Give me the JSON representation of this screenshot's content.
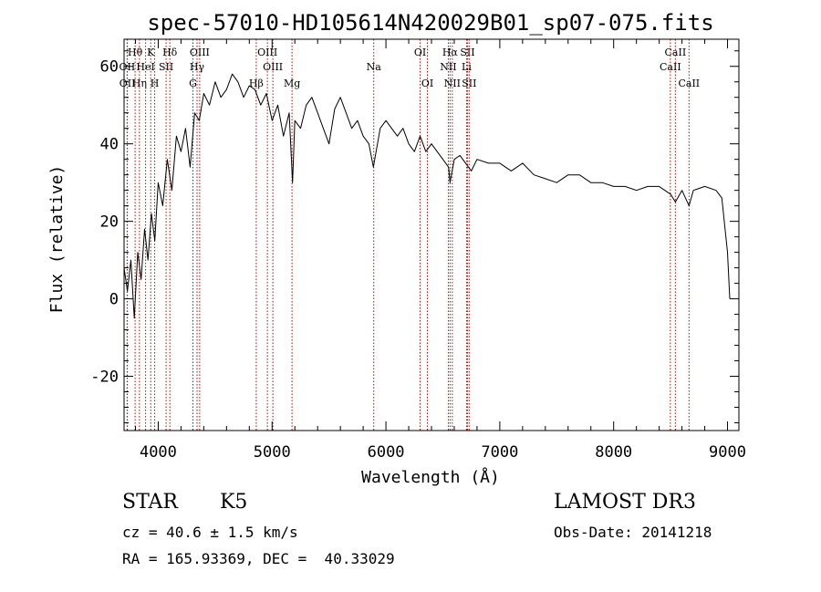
{
  "chart_data": {
    "type": "line",
    "title": "spec-57010-HD105614N420029B01_sp07-075.fits",
    "xlabel": "Wavelength (Å)",
    "ylabel": "Flux (relative)",
    "xlim": [
      3700,
      9100
    ],
    "ylim": [
      -34,
      67
    ],
    "xticks": [
      4000,
      5000,
      6000,
      7000,
      8000,
      9000
    ],
    "yticks": [
      -20,
      0,
      20,
      40,
      60
    ],
    "grid": false,
    "series": [
      {
        "name": "Flux",
        "x": [
          3700,
          3730,
          3760,
          3790,
          3820,
          3850,
          3880,
          3910,
          3940,
          3970,
          4000,
          4040,
          4080,
          4120,
          4160,
          4200,
          4240,
          4280,
          4320,
          4360,
          4400,
          4450,
          4500,
          4550,
          4600,
          4650,
          4700,
          4750,
          4800,
          4850,
          4900,
          4950,
          5000,
          5050,
          5100,
          5150,
          5180,
          5200,
          5250,
          5300,
          5350,
          5400,
          5450,
          5500,
          5550,
          5600,
          5650,
          5700,
          5750,
          5800,
          5850,
          5890,
          5950,
          6000,
          6050,
          6100,
          6150,
          6200,
          6250,
          6300,
          6350,
          6400,
          6450,
          6500,
          6550,
          6563,
          6600,
          6650,
          6700,
          6750,
          6800,
          6900,
          7000,
          7100,
          7200,
          7300,
          7400,
          7500,
          7600,
          7700,
          7800,
          7900,
          8000,
          8100,
          8200,
          8300,
          8400,
          8500,
          8542,
          8600,
          8662,
          8700,
          8800,
          8900,
          8950,
          9000,
          9020
        ],
        "y": [
          8,
          2,
          10,
          -5,
          12,
          5,
          18,
          10,
          22,
          15,
          30,
          24,
          36,
          28,
          42,
          38,
          44,
          34,
          48,
          46,
          53,
          50,
          56,
          52,
          54,
          58,
          56,
          52,
          55,
          54,
          50,
          53,
          46,
          50,
          42,
          48,
          30,
          46,
          44,
          50,
          52,
          48,
          44,
          40,
          49,
          52,
          48,
          44,
          46,
          42,
          40,
          34,
          44,
          46,
          44,
          42,
          44,
          40,
          38,
          42,
          38,
          40,
          38,
          36,
          34,
          30,
          36,
          37,
          35,
          33,
          36,
          35,
          35,
          33,
          35,
          32,
          31,
          30,
          32,
          32,
          30,
          30,
          29,
          29,
          28,
          29,
          29,
          27,
          25,
          28,
          24,
          28,
          29,
          28,
          26,
          12,
          0
        ]
      }
    ],
    "lines": [
      {
        "label": "Hθ",
        "x": 3797,
        "row": 1
      },
      {
        "label": "OII",
        "x": 3727,
        "row": 2
      },
      {
        "label": "OII",
        "x": 3729,
        "row": 3
      },
      {
        "label": "Hη",
        "x": 3835,
        "row": 3
      },
      {
        "label": "HeI",
        "x": 3889,
        "row": 2
      },
      {
        "label": "K",
        "x": 3934,
        "row": 1
      },
      {
        "label": "H",
        "x": 3969,
        "row": 3
      },
      {
        "label": "SII",
        "x": 4069,
        "row": 2
      },
      {
        "label": "Hδ",
        "x": 4102,
        "row": 1
      },
      {
        "label": "OIII",
        "x": 4364,
        "row": 1
      },
      {
        "label": "Hγ",
        "x": 4341,
        "row": 2
      },
      {
        "label": "G",
        "x": 4305,
        "row": 3
      },
      {
        "label": "OIII",
        "x": 4959,
        "row": 1
      },
      {
        "label": "OIII",
        "x": 5007,
        "row": 2
      },
      {
        "label": "Hβ",
        "x": 4861,
        "row": 3
      },
      {
        "label": "Mg",
        "x": 5175,
        "row": 3
      },
      {
        "label": "Na",
        "x": 5893,
        "row": 2
      },
      {
        "label": "OI",
        "x": 6300,
        "row": 1
      },
      {
        "label": "OI",
        "x": 6364,
        "row": 3
      },
      {
        "label": "Hα",
        "x": 6563,
        "row": 1
      },
      {
        "label": "SII",
        "x": 6716,
        "row": 1
      },
      {
        "label": "NII",
        "x": 6548,
        "row": 2
      },
      {
        "label": "Li",
        "x": 6708,
        "row": 2
      },
      {
        "label": "NII",
        "x": 6583,
        "row": 3
      },
      {
        "label": "SII",
        "x": 6731,
        "row": 3
      },
      {
        "label": "CaII",
        "x": 8542,
        "row": 1
      },
      {
        "label": "CaII",
        "x": 8498,
        "row": 2
      },
      {
        "label": "CaII",
        "x": 8662,
        "row": 3
      }
    ],
    "line_color": "#cc0000"
  },
  "info": {
    "object_class": "STAR",
    "subclass": "K5",
    "survey": "LAMOST DR3",
    "cz": "cz = 40.6 ± 1.5 km/s",
    "obs_date": "Obs-Date: 20141218",
    "coords": "RA = 165.93369, DEC =  40.33029"
  }
}
